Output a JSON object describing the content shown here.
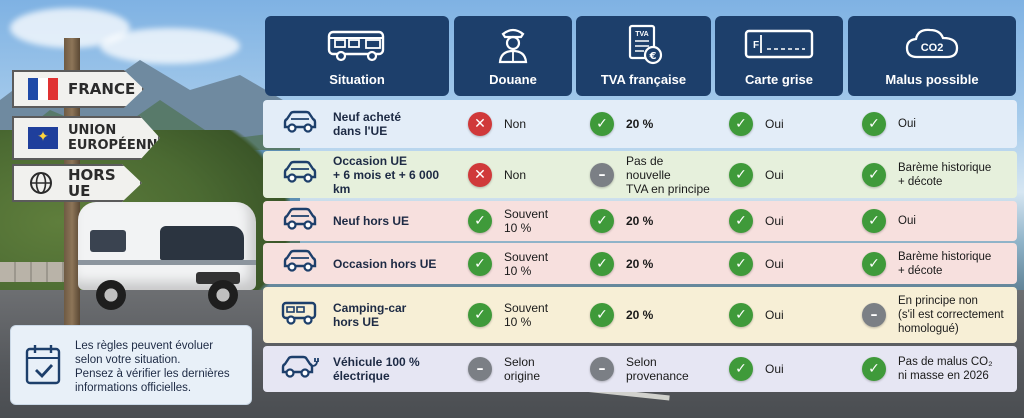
{
  "signs": [
    {
      "label": "FRANCE",
      "flag": "france-flag"
    },
    {
      "label": "UNION\nEUROPÉENNE",
      "flag": "eu-flag"
    },
    {
      "label": "HORS UE",
      "flag": "globe-icon"
    }
  ],
  "headers": [
    {
      "label": "Situation",
      "icon": "camper-van-icon"
    },
    {
      "label": "Douane",
      "icon": "customs-officer-icon"
    },
    {
      "label": "TVA française",
      "icon": "tva-document-icon"
    },
    {
      "label": "Carte grise",
      "icon": "registration-card-icon"
    },
    {
      "label": "Malus possible",
      "icon": "co2-cloud-icon"
    }
  ],
  "co2_label": "CO2",
  "tva_icon_label": "TVA",
  "card_icon_label": "F",
  "rows": [
    {
      "situation": "Neuf acheté\ndans l'UE",
      "vehicle_icon": "car-icon",
      "douane": {
        "status": "no",
        "text": "Non"
      },
      "tva": {
        "status": "yes",
        "text": "20 %"
      },
      "carte": {
        "status": "yes",
        "text": "Oui"
      },
      "malus": {
        "status": "yes",
        "text": "Oui"
      },
      "bg": "#e3edf8"
    },
    {
      "situation": "Occasion UE\n+ 6 mois et + 6 000 km",
      "vehicle_icon": "car-icon",
      "douane": {
        "status": "no",
        "text": "Non"
      },
      "tva": {
        "status": "neutral",
        "text": "Pas de nouvelle\nTVA en principe"
      },
      "carte": {
        "status": "yes",
        "text": "Oui"
      },
      "malus": {
        "status": "yes",
        "text": "Barème historique\n+ décote"
      },
      "bg": "#e6f0dc"
    },
    {
      "situation": "Neuf hors UE",
      "vehicle_icon": "car-icon",
      "douane": {
        "status": "yes",
        "text": "Souvent\n10 %"
      },
      "tva": {
        "status": "yes",
        "text": "20 %"
      },
      "carte": {
        "status": "yes",
        "text": "Oui"
      },
      "malus": {
        "status": "yes",
        "text": "Oui"
      },
      "bg": "#f7e0de"
    },
    {
      "situation": "Occasion hors UE",
      "vehicle_icon": "car-icon",
      "douane": {
        "status": "yes",
        "text": "Souvent\n10 %"
      },
      "tva": {
        "status": "yes",
        "text": "20 %"
      },
      "carte": {
        "status": "yes",
        "text": "Oui"
      },
      "malus": {
        "status": "yes",
        "text": "Barème historique\n+ décote"
      },
      "bg": "#f7e0de"
    },
    {
      "situation": "Camping-car\nhors UE",
      "vehicle_icon": "camper-icon",
      "douane": {
        "status": "yes",
        "text": "Souvent\n10 %"
      },
      "tva": {
        "status": "yes",
        "text": "20 %"
      },
      "carte": {
        "status": "yes",
        "text": "Oui"
      },
      "malus": {
        "status": "neutral",
        "text": "En principe non\n(s'il est correctement\nhomologué)"
      },
      "bg": "#f7efd6"
    },
    {
      "situation": "Véhicule 100 %\nélectrique",
      "vehicle_icon": "electric-car-icon",
      "douane": {
        "status": "neutral",
        "text": "Selon\norigine"
      },
      "tva": {
        "status": "neutral",
        "text": "Selon\nprovenance"
      },
      "carte": {
        "status": "yes",
        "text": "Oui"
      },
      "malus": {
        "status": "yes",
        "text": "Pas de malus CO₂\nni masse en 2026"
      },
      "bg": "#e6e6f3"
    }
  ],
  "note": "Les règles peuvent évoluer\nselon votre situation.\nPensez à vérifier les dernières\ninformations officielles.",
  "colors": {
    "header": "#1d3f6b",
    "yes": "#3f9a3a",
    "no": "#d0393a",
    "neutral": "#7b7f85"
  }
}
